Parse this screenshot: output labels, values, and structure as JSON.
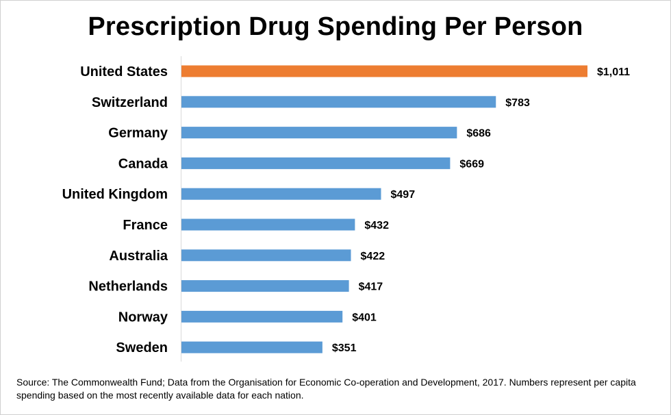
{
  "chart_data": {
    "type": "bar",
    "orientation": "horizontal",
    "title": "Prescription Drug Spending Per Person",
    "categories": [
      "United States",
      "Switzerland",
      "Germany",
      "Canada",
      "United Kingdom",
      "France",
      "Australia",
      "Netherlands",
      "Norway",
      "Sweden"
    ],
    "values": [
      1011,
      783,
      686,
      669,
      497,
      432,
      422,
      417,
      401,
      351
    ],
    "data_labels": [
      "$1,011",
      "$783",
      "$686",
      "$669",
      "$497",
      "$432",
      "$422",
      "$417",
      "$401",
      "$351"
    ],
    "highlight_category": "United States",
    "colors": {
      "default": "#5B9BD5",
      "highlight": "#ED7D31",
      "axis": "#d9d9d9"
    },
    "xlim": [
      0,
      1011
    ],
    "grid": false,
    "legend": "none"
  },
  "source_note": "Source: The Commonwealth Fund; Data from the Organisation for Economic Co-operation and Development, 2017. Numbers represent per capita spending based on the most recently available data for each nation."
}
